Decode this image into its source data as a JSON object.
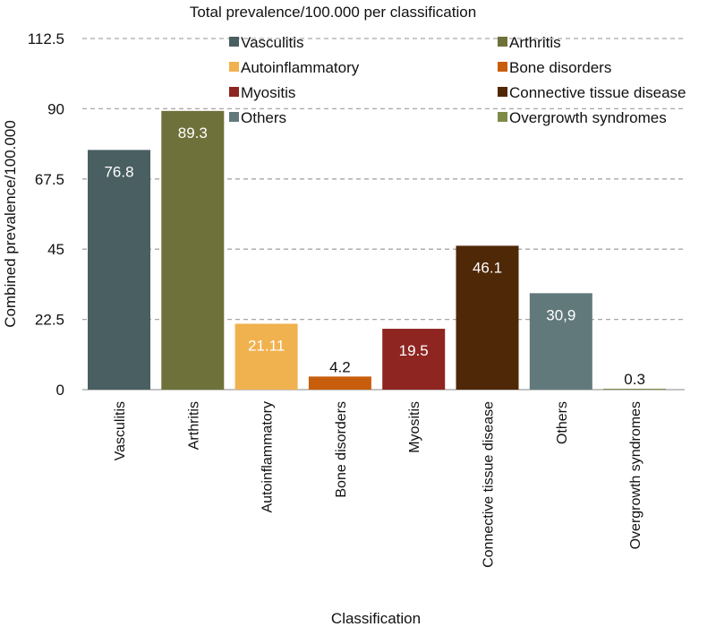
{
  "chart_data": {
    "type": "bar",
    "title": "Total prevalence/100.000 per classification",
    "xlabel": "Classification",
    "ylabel": "Combined prevalence/100.000",
    "ylim": [
      0,
      112.5
    ],
    "yticks": [
      "0",
      "22.5",
      "45",
      "67.5",
      "90",
      "112.5"
    ],
    "categories": [
      "Vasculitis",
      "Arthritis",
      "Autoinflammatory",
      "Bone disorders",
      "Myositis",
      "Connective tissue disease",
      "Others",
      "Overgrowth syndromes"
    ],
    "values": [
      76.8,
      89.3,
      21.11,
      4.2,
      19.5,
      46.1,
      30.9,
      0.3
    ],
    "data_labels": [
      "76.8",
      "89.3",
      "21.11",
      "4.2",
      "19.5",
      "46.1",
      "30,9",
      "0.3"
    ],
    "colors": [
      "#4a5f61",
      "#6e713a",
      "#f0b24f",
      "#c85e0c",
      "#8e2521",
      "#4f2807",
      "#62797c",
      "#7e8b48"
    ],
    "label_colors": [
      "#ffffff",
      "#ffffff",
      "#ffffff",
      "#111111",
      "#ffffff",
      "#ffffff",
      "#ffffff",
      "#111111"
    ],
    "legend": [
      "Vasculitis",
      "Arthritis",
      "Autoinflammatory",
      "Bone disorders",
      "Myositis",
      "Connective tissue disease",
      "Others",
      "Overgrowth syndromes"
    ],
    "legend_placement": "top",
    "grid": true
  }
}
